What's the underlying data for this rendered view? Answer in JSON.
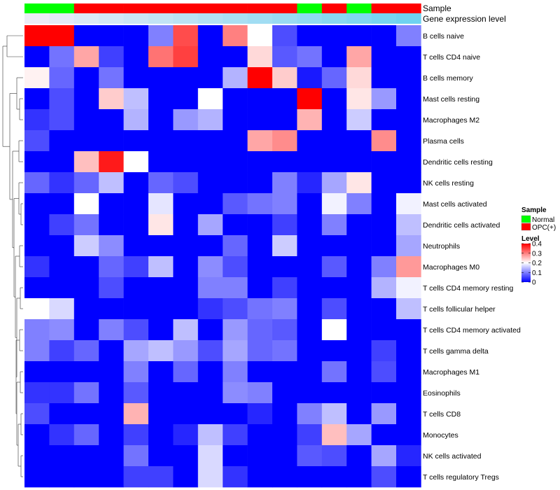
{
  "chart_data": {
    "type": "heatmap",
    "columns": 16,
    "annotations": [
      {
        "name": "Sample",
        "values": [
          "Normal",
          "Normal",
          "OPC(+)",
          "OPC(+)",
          "OPC(+)",
          "OPC(+)",
          "OPC(+)",
          "OPC(+)",
          "OPC(+)",
          "OPC(+)",
          "OPC(+)",
          "Normal",
          "OPC(+)",
          "Normal",
          "OPC(+)",
          "OPC(+)"
        ]
      },
      {
        "name": "Gene expression level",
        "gradient": [
          "#ececf7",
          "#6fd3f0"
        ]
      }
    ],
    "rows": [
      {
        "name": "B cells naive",
        "values": [
          0.4,
          0.4,
          0,
          0,
          0,
          0.1,
          0.34,
          0,
          0.3,
          0.2,
          0.06,
          0,
          0,
          0,
          0,
          0.1
        ]
      },
      {
        "name": "T cells CD4 naive",
        "values": [
          0,
          0.09,
          0.27,
          0.05,
          0,
          0.31,
          0.35,
          0,
          0,
          0.23,
          0.07,
          0.09,
          0,
          0.27,
          0,
          0
        ]
      },
      {
        "name": "B cells memory",
        "values": [
          0.21,
          0.08,
          0,
          0.09,
          0,
          0,
          0,
          0,
          0.14,
          0.4,
          0.24,
          0.02,
          0.08,
          0.23,
          0,
          0
        ]
      },
      {
        "name": "Mast cells resting",
        "values": [
          0,
          0.06,
          0,
          0.24,
          0.15,
          0,
          0,
          0.2,
          0,
          0,
          0,
          0.4,
          0,
          0.22,
          0.12,
          0
        ]
      },
      {
        "name": "Macrophages M2",
        "values": [
          0.04,
          0.06,
          0,
          0,
          0.14,
          0,
          0.12,
          0.14,
          0,
          0,
          0,
          0.26,
          0,
          0.16,
          0,
          0
        ]
      },
      {
        "name": "Plasma cells",
        "values": [
          0.06,
          0,
          0,
          0,
          0,
          0,
          0,
          0,
          0,
          0.27,
          0.29,
          0,
          0,
          0,
          0.29,
          0
        ]
      },
      {
        "name": "Dendritic cells resting",
        "values": [
          0,
          0,
          0.25,
          0.38,
          0.2,
          0,
          0,
          0,
          0,
          0,
          0,
          0,
          0,
          0,
          0,
          0
        ]
      },
      {
        "name": "NK cells resting",
        "values": [
          0.08,
          0.04,
          0.08,
          0.15,
          0,
          0.08,
          0.06,
          0,
          0,
          0,
          0.1,
          0.03,
          0.13,
          0.22,
          0,
          0
        ]
      },
      {
        "name": "Mast cells activated",
        "values": [
          0,
          0,
          0.2,
          0,
          0,
          0.18,
          0,
          0,
          0.07,
          0.09,
          0.1,
          0,
          0.19,
          0.1,
          0,
          0.19
        ]
      },
      {
        "name": "Dendritic cells activated",
        "values": [
          0,
          0.05,
          0.09,
          0,
          0,
          0.22,
          0,
          0.13,
          0,
          0,
          0.05,
          0,
          0.1,
          0,
          0,
          0.15
        ]
      },
      {
        "name": "Neutrophils",
        "values": [
          0,
          0,
          0.16,
          0.11,
          0,
          0,
          0,
          0,
          0.08,
          0,
          0.16,
          0,
          0,
          0,
          0,
          0.13
        ]
      },
      {
        "name": "Macrophages M0",
        "values": [
          0.04,
          0,
          0,
          0.08,
          0.05,
          0.15,
          0,
          0.11,
          0.06,
          0,
          0,
          0,
          0.07,
          0,
          0.1,
          0.28
        ]
      },
      {
        "name": "T cells CD4 memory resting",
        "values": [
          0,
          0,
          0,
          0.06,
          0,
          0,
          0,
          0.1,
          0.1,
          0,
          0.05,
          0,
          0,
          0,
          0.14,
          0.19
        ]
      },
      {
        "name": "T cells follicular helper",
        "values": [
          0.2,
          0.17,
          0,
          0,
          0,
          0,
          0,
          0.04,
          0.06,
          0.09,
          0.1,
          0,
          0.06,
          0,
          0,
          0.15
        ]
      },
      {
        "name": "T cells CD4 memory activated",
        "values": [
          0.1,
          0.11,
          0,
          0.1,
          0.06,
          0,
          0.15,
          0,
          0.12,
          0.08,
          0.07,
          0,
          0.2,
          0,
          0,
          0
        ]
      },
      {
        "name": "T cells gamma delta",
        "values": [
          0.1,
          0.05,
          0.08,
          0,
          0.13,
          0.15,
          0.12,
          0.06,
          0.13,
          0.08,
          0.09,
          0,
          0,
          0,
          0.05,
          0
        ]
      },
      {
        "name": "Macrophages M1",
        "values": [
          0,
          0,
          0,
          0,
          0.1,
          0,
          0.08,
          0,
          0.1,
          0,
          0,
          0,
          0.09,
          0,
          0.06,
          0
        ]
      },
      {
        "name": "Eosinophils",
        "values": [
          0.04,
          0.04,
          0.09,
          0,
          0.07,
          0,
          0,
          0,
          0.11,
          0.1,
          0,
          0,
          0,
          0,
          0,
          0
        ]
      },
      {
        "name": "T cells CD8",
        "values": [
          0.06,
          0,
          0,
          0,
          0.26,
          0,
          0,
          0,
          0,
          0.03,
          0,
          0.1,
          0.15,
          0,
          0.12,
          0
        ]
      },
      {
        "name": "Monocytes",
        "values": [
          0,
          0.04,
          0.08,
          0,
          0.05,
          0,
          0.03,
          0.15,
          0.05,
          0,
          0,
          0.05,
          0.25,
          0.13,
          0,
          0
        ]
      },
      {
        "name": "NK cells activated",
        "values": [
          0,
          0,
          0,
          0,
          0.09,
          0,
          0,
          0.17,
          0,
          0,
          0,
          0.07,
          0.06,
          0,
          0.13,
          0.03
        ]
      },
      {
        "name": "T cells regulatory  Tregs",
        "values": [
          0,
          0,
          0,
          0,
          0.05,
          0.05,
          0,
          0.17,
          0.04,
          0,
          0,
          0,
          0,
          0,
          0.06,
          0
        ]
      }
    ],
    "legends": {
      "sample": {
        "title": "Sample",
        "items": [
          {
            "label": "Normal",
            "color": "#00ff00"
          },
          {
            "label": "OPC(+)",
            "color": "#ff0000"
          }
        ]
      },
      "level": {
        "title": "Level",
        "ticks": [
          "0.4",
          "0.3",
          "0.2",
          "0.1",
          "0"
        ],
        "tick_values": [
          0.4,
          0.3,
          0.2,
          0.1,
          0
        ],
        "range": [
          0,
          0.4
        ]
      }
    },
    "colors": {
      "low": "#0000ff",
      "mid": "#ffffff",
      "high": "#ff0000"
    },
    "dendrogram": "rows",
    "grid": false
  }
}
